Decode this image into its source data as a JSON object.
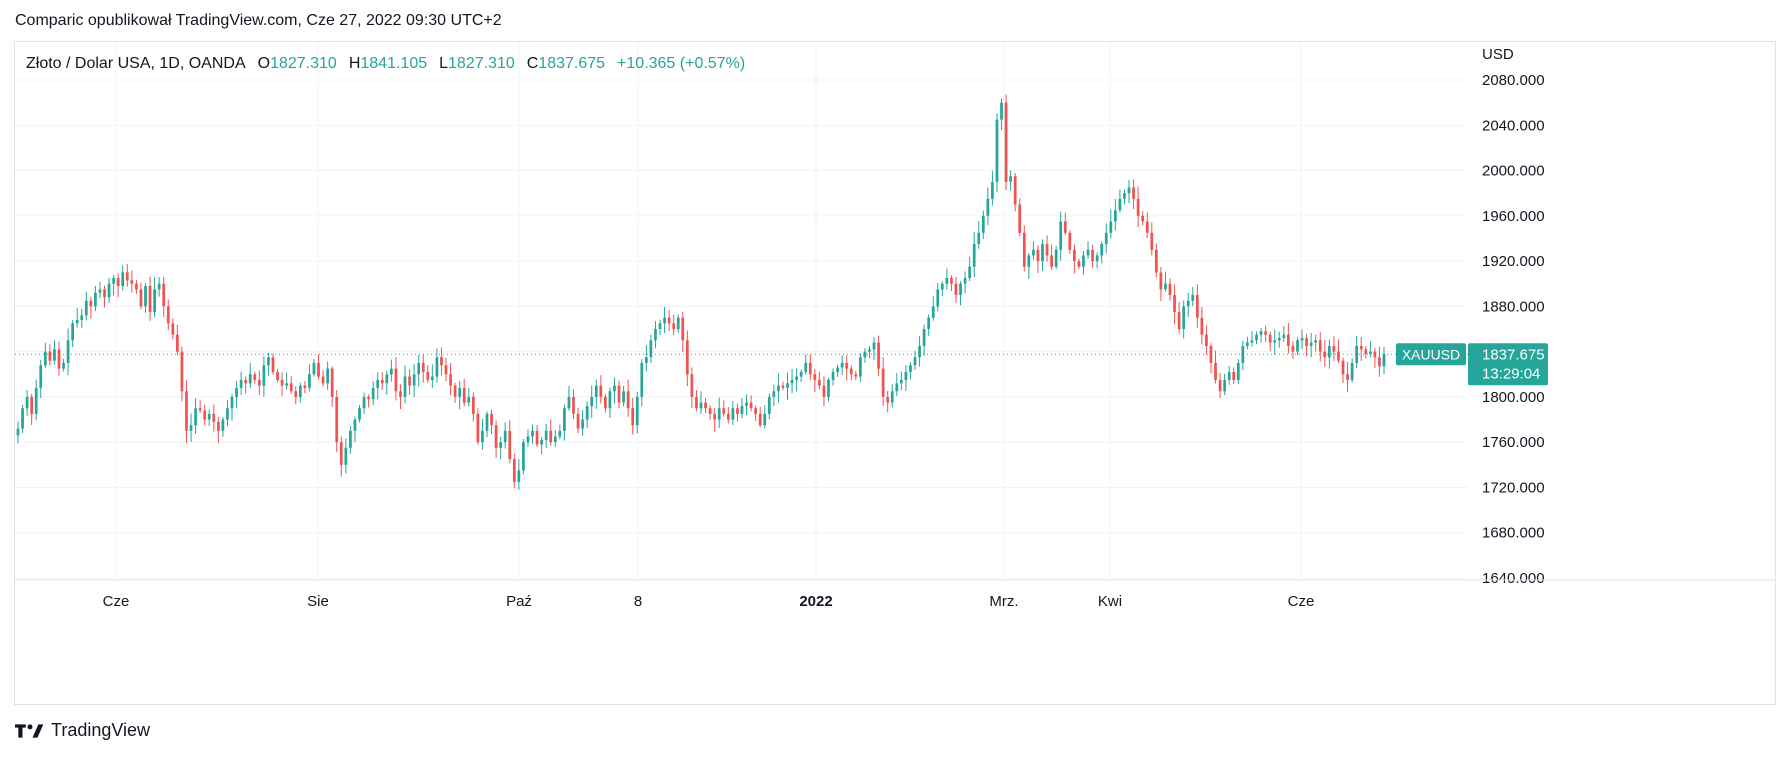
{
  "header": {
    "attribution": "Comparic opublikował TradingView.com, Cze 27, 2022 09:30 UTC+2"
  },
  "legend": {
    "symbol": "Złoto / Dolar USA, 1D, OANDA",
    "open_label": "O",
    "open": "1827.310",
    "high_label": "H",
    "high": "1841.105",
    "low_label": "L",
    "low": "1827.310",
    "close_label": "C",
    "close": "1837.675",
    "change": "+10.365 (+0.57%)"
  },
  "footer": {
    "brand": "TradingView"
  },
  "colors": {
    "up": "#26a69a",
    "down": "#ef5350",
    "grid": "#f0f3fa",
    "text": "#131722"
  },
  "chart_data": {
    "type": "candlestick",
    "currency_label": "USD",
    "price_axis": {
      "ticks": [
        "2080.000",
        "2040.000",
        "2000.000",
        "1960.000",
        "1920.000",
        "1880.000",
        "1840.000",
        "1800.000",
        "1760.000",
        "1720.000",
        "1680.000",
        "1640.000"
      ],
      "ylim": [
        1640,
        2095
      ]
    },
    "time_axis_labels": [
      {
        "label": "Cze",
        "bold": false
      },
      {
        "label": "Sie",
        "bold": false
      },
      {
        "label": "Paź",
        "bold": false
      },
      {
        "label": "8",
        "bold": false
      },
      {
        "label": "2022",
        "bold": true
      },
      {
        "label": "Mrz.",
        "bold": false
      },
      {
        "label": "Kwi",
        "bold": false
      },
      {
        "label": "Cze",
        "bold": false
      }
    ],
    "last_price": {
      "symbol": "XAUUSD",
      "price": "1837.675",
      "value": 1837.675,
      "countdown": "13:29:04"
    },
    "closes": [
      1772,
      1790,
      1800,
      1785,
      1808,
      1828,
      1840,
      1832,
      1842,
      1825,
      1830,
      1850,
      1865,
      1868,
      1872,
      1885,
      1880,
      1892,
      1895,
      1888,
      1900,
      1905,
      1898,
      1910,
      1903,
      1900,
      1895,
      1880,
      1898,
      1875,
      1895,
      1900,
      1880,
      1865,
      1855,
      1840,
      1805,
      1770,
      1775,
      1790,
      1788,
      1780,
      1785,
      1778,
      1770,
      1780,
      1790,
      1800,
      1808,
      1815,
      1812,
      1820,
      1815,
      1810,
      1828,
      1835,
      1822,
      1815,
      1810,
      1812,
      1805,
      1800,
      1810,
      1808,
      1820,
      1830,
      1818,
      1812,
      1825,
      1800,
      1760,
      1740,
      1755,
      1770,
      1780,
      1790,
      1800,
      1798,
      1808,
      1815,
      1812,
      1820,
      1825,
      1805,
      1800,
      1818,
      1810,
      1820,
      1830,
      1822,
      1815,
      1818,
      1835,
      1828,
      1820,
      1810,
      1800,
      1808,
      1795,
      1800,
      1785,
      1760,
      1770,
      1785,
      1775,
      1755,
      1760,
      1770,
      1745,
      1725,
      1735,
      1760,
      1765,
      1770,
      1758,
      1762,
      1770,
      1760,
      1765,
      1770,
      1790,
      1800,
      1785,
      1772,
      1780,
      1792,
      1800,
      1810,
      1800,
      1790,
      1805,
      1810,
      1795,
      1805,
      1790,
      1775,
      1800,
      1830,
      1835,
      1850,
      1860,
      1865,
      1870,
      1865,
      1860,
      1870,
      1850,
      1820,
      1800,
      1790,
      1795,
      1790,
      1785,
      1780,
      1790,
      1785,
      1780,
      1790,
      1785,
      1792,
      1795,
      1790,
      1785,
      1775,
      1785,
      1800,
      1805,
      1810,
      1808,
      1812,
      1815,
      1818,
      1822,
      1830,
      1820,
      1815,
      1810,
      1800,
      1815,
      1822,
      1826,
      1830,
      1825,
      1820,
      1818,
      1835,
      1840,
      1842,
      1848,
      1825,
      1800,
      1795,
      1805,
      1812,
      1815,
      1822,
      1828,
      1835,
      1845,
      1860,
      1870,
      1880,
      1895,
      1900,
      1905,
      1900,
      1890,
      1900,
      1905,
      1915,
      1935,
      1945,
      1960,
      1975,
      1990,
      2045,
      2060,
      1990,
      1995,
      1970,
      1945,
      1915,
      1925,
      1930,
      1920,
      1935,
      1925,
      1915,
      1930,
      1955,
      1945,
      1930,
      1920,
      1915,
      1925,
      1930,
      1920,
      1925,
      1935,
      1945,
      1955,
      1965,
      1975,
      1980,
      1985,
      1975,
      1960,
      1955,
      1945,
      1930,
      1910,
      1895,
      1900,
      1890,
      1875,
      1860,
      1880,
      1885,
      1890,
      1870,
      1855,
      1845,
      1830,
      1815,
      1805,
      1815,
      1822,
      1815,
      1830,
      1845,
      1848,
      1850,
      1855,
      1858,
      1855,
      1848,
      1850,
      1852,
      1855,
      1845,
      1840,
      1850,
      1852,
      1845,
      1848,
      1850,
      1840,
      1835,
      1845,
      1840,
      1832,
      1820,
      1815,
      1830,
      1845,
      1842,
      1838,
      1840,
      1835,
      1827,
      1838
    ]
  }
}
